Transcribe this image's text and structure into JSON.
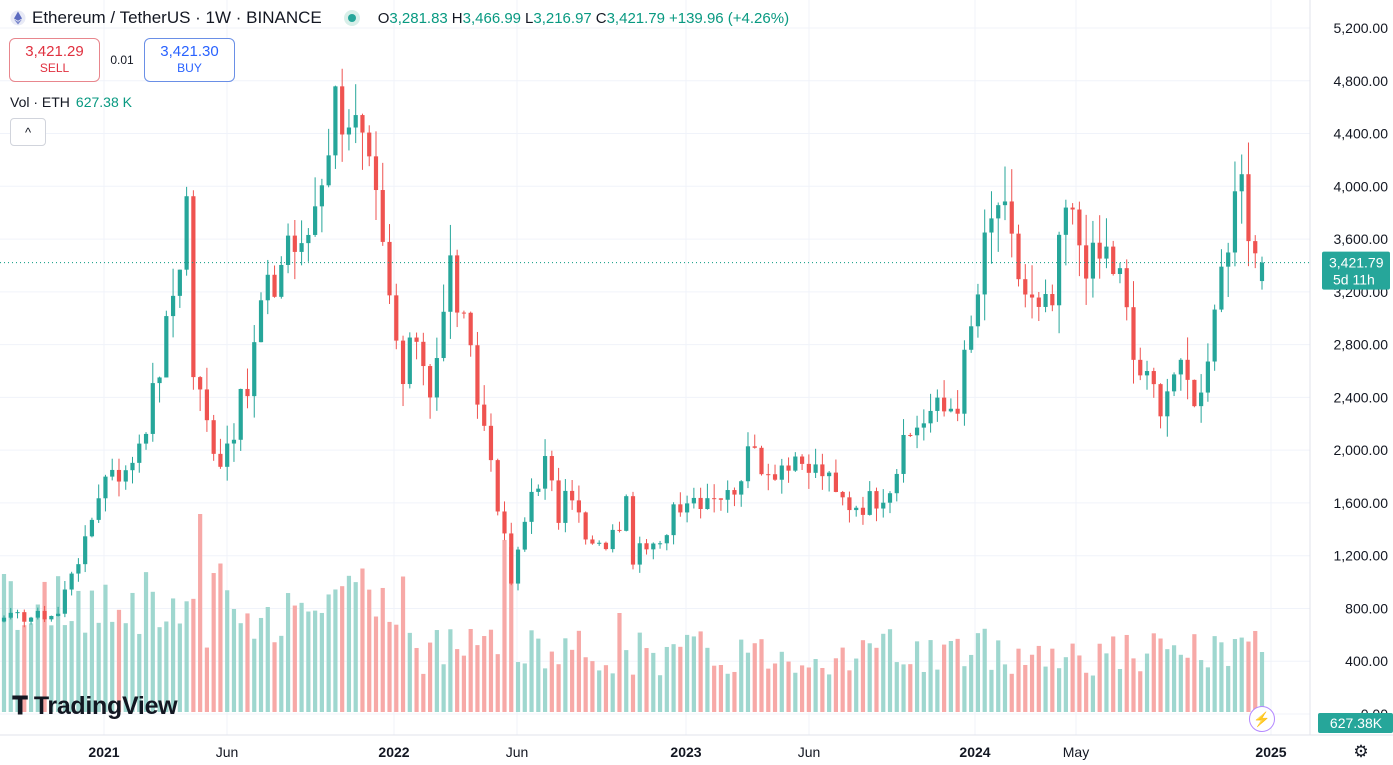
{
  "header": {
    "symbol_title": "Ethereum / TetherUS · 1W · BINANCE",
    "o_label": "O",
    "o_value": "3,281.83",
    "h_label": "H",
    "h_value": "3,466.99",
    "l_label": "L",
    "l_value": "3,216.97",
    "c_label": "C",
    "c_value": "3,421.79",
    "change": "+139.96 (+4.26%)"
  },
  "trade": {
    "sell_price": "3,421.29",
    "sell_label": "SELL",
    "spread": "0.01",
    "buy_price": "3,421.30",
    "buy_label": "BUY"
  },
  "volume": {
    "label": "Vol · ETH",
    "value": "627.38 K"
  },
  "collapse_icon": "^",
  "logo_text": "TradingView",
  "last_price": {
    "value": "3,421.79",
    "countdown": "5d 11h"
  },
  "last_volume": "627.38K",
  "icons": {
    "collapse": "chevron-up-icon",
    "bolt": "lightning-icon",
    "settings": "gear-icon",
    "logo": "tradingview-logo-icon"
  },
  "colors": {
    "up": "#26a69a",
    "down": "#ef5350",
    "up_vol": "#9fd7cf",
    "down_vol": "#f7a9a7",
    "price_tag": "#26a69a"
  },
  "chart_data": {
    "type": "candlestick",
    "title": "Ethereum / TetherUS · 1W · BINANCE",
    "y_ticks": [
      "5,200.00",
      "4,800.00",
      "4,400.00",
      "4,000.00",
      "3,600.00",
      "3,200.00",
      "2,800.00",
      "2,400.00",
      "2,000.00",
      "1,600.00",
      "1,200.00",
      "800.00",
      "400.00",
      "0.00"
    ],
    "x_labels": [
      "2021",
      "Jun",
      "2022",
      "Jun",
      "2023",
      "Jun",
      "2024",
      "May",
      "2025"
    ],
    "ylim": [
      0,
      5200
    ],
    "price_anchors": [
      [
        0,
        730
      ],
      [
        4,
        740
      ],
      [
        8,
        760
      ],
      [
        10,
        1100
      ],
      [
        12,
        1280
      ],
      [
        14,
        1700
      ],
      [
        16,
        1900
      ],
      [
        18,
        1800
      ],
      [
        20,
        2100
      ],
      [
        22,
        2400
      ],
      [
        24,
        2900
      ],
      [
        26,
        3500
      ],
      [
        27,
        3900
      ],
      [
        28,
        2600
      ],
      [
        30,
        2200
      ],
      [
        32,
        1950
      ],
      [
        34,
        2200
      ],
      [
        36,
        2450
      ],
      [
        38,
        3100
      ],
      [
        40,
        3250
      ],
      [
        42,
        3650
      ],
      [
        44,
        3450
      ],
      [
        46,
        3900
      ],
      [
        48,
        4400
      ],
      [
        49,
        4650
      ],
      [
        51,
        4600
      ],
      [
        53,
        4250
      ],
      [
        55,
        3800
      ],
      [
        57,
        3100
      ],
      [
        59,
        2500
      ],
      [
        61,
        2900
      ],
      [
        63,
        2500
      ],
      [
        65,
        3000
      ],
      [
        66,
        3400
      ],
      [
        68,
        2900
      ],
      [
        70,
        2400
      ],
      [
        72,
        1950
      ],
      [
        74,
        1300
      ],
      [
        75,
        1000
      ],
      [
        76,
        1200
      ],
      [
        78,
        1700
      ],
      [
        80,
        1900
      ],
      [
        82,
        1500
      ],
      [
        84,
        1700
      ],
      [
        86,
        1300
      ],
      [
        88,
        1250
      ],
      [
        90,
        1350
      ],
      [
        92,
        1560
      ],
      [
        93,
        1200
      ],
      [
        95,
        1250
      ],
      [
        97,
        1250
      ],
      [
        99,
        1600
      ],
      [
        101,
        1650
      ],
      [
        103,
        1650
      ],
      [
        105,
        1700
      ],
      [
        107,
        1650
      ],
      [
        109,
        1850
      ],
      [
        111,
        2000
      ],
      [
        113,
        1850
      ],
      [
        115,
        1900
      ],
      [
        117,
        1850
      ],
      [
        119,
        1850
      ],
      [
        121,
        1850
      ],
      [
        123,
        1650
      ],
      [
        125,
        1600
      ],
      [
        127,
        1600
      ],
      [
        129,
        1650
      ],
      [
        131,
        1750
      ],
      [
        133,
        2000
      ],
      [
        135,
        2200
      ],
      [
        137,
        2300
      ],
      [
        139,
        2300
      ],
      [
        141,
        2400
      ],
      [
        143,
        2900
      ],
      [
        145,
        3500
      ],
      [
        147,
        3900
      ],
      [
        149,
        3500
      ],
      [
        151,
        3200
      ],
      [
        153,
        3000
      ],
      [
        155,
        3100
      ],
      [
        157,
        3800
      ],
      [
        159,
        3600
      ],
      [
        161,
        3400
      ],
      [
        163,
        3500
      ],
      [
        165,
        3300
      ],
      [
        167,
        2700
      ],
      [
        169,
        2500
      ],
      [
        171,
        2400
      ],
      [
        173,
        2600
      ],
      [
        175,
        2500
      ],
      [
        177,
        2400
      ],
      [
        179,
        3200
      ],
      [
        181,
        3600
      ],
      [
        183,
        3900
      ],
      [
        184,
        3600
      ],
      [
        185,
        3300
      ],
      [
        186,
        3421.79
      ]
    ],
    "last_close": 3421.79,
    "last_volume_k": 627.38
  }
}
